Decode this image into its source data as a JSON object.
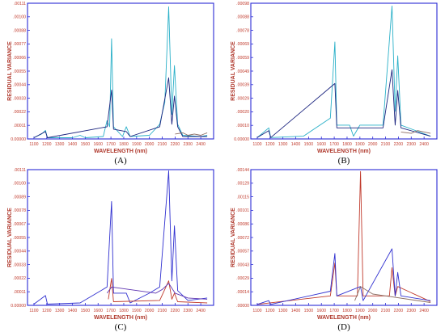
{
  "figure": {
    "panels": [
      {
        "letter": "(A)",
        "ylabel": "RESIDUAL VARIANCE",
        "xlabel": "WAVELENGTH (nm)",
        "yticks": [
          "0.00000",
          ".00011",
          ".00022",
          ".00033",
          ".00044",
          ".00055",
          ".00066",
          ".00077",
          ".00088",
          ".00100",
          ".00111"
        ],
        "xticks": [
          "1100",
          "1200",
          "1300",
          "1400",
          "1500",
          "1600",
          "1700",
          "1800",
          "1900",
          "2000",
          "2100",
          "2200",
          "2300",
          "2400"
        ]
      },
      {
        "letter": "(B)",
        "ylabel": "RESIDUAL VARIANCE",
        "xlabel": "WAVELENGTH (nm)",
        "yticks": [
          "0.00000",
          ".00010",
          ".00020",
          ".00029",
          ".00039",
          ".00049",
          ".00059",
          ".00069",
          ".00078",
          ".00088",
          ".00098"
        ],
        "xticks": [
          "1100",
          "1200",
          "1300",
          "1400",
          "1500",
          "1600",
          "1700",
          "1800",
          "1900",
          "2000",
          "2100",
          "2200",
          "2300",
          "2400"
        ]
      },
      {
        "letter": "(C)",
        "ylabel": "RESIDUAL VARIANCE",
        "xlabel": "WAVELENGTH (nm)",
        "yticks": [
          "0.00000",
          ".00011",
          ".00022",
          ".00033",
          ".00044",
          ".00055",
          ".00067",
          ".00078",
          ".00089",
          ".00100",
          ".00111"
        ],
        "xticks": [
          "1100",
          "1200",
          "1300",
          "1400",
          "1500",
          "1600",
          "1700",
          "1800",
          "1900",
          "2000",
          "2100",
          "2200",
          "2300",
          "2400"
        ]
      },
      {
        "letter": "(D)",
        "ylabel": "RESIDUAL VARIANCE",
        "xlabel": "WAVELENGTH (nm)",
        "yticks": [
          ".00000",
          ".00014",
          ".00029",
          ".00043",
          ".00057",
          ".00072",
          ".00086",
          ".00101",
          ".00115",
          ".00129",
          ".00144"
        ],
        "xticks": [
          "1100",
          "1200",
          "1300",
          "1400",
          "1500",
          "1600",
          "1700",
          "1800",
          "1900",
          "2000",
          "2100",
          "2200",
          "2300",
          "2400"
        ]
      }
    ]
  },
  "chart_data": [
    {
      "type": "line",
      "ylabel": "RESIDUAL VARIANCE",
      "xlabel": "WAVELENGTH (nm)",
      "xlim": [
        1050,
        2500
      ],
      "ylim": [
        0,
        0.00111
      ],
      "grid": false,
      "series": [
        {
          "color": "#2ab0c8",
          "points": [
            [
              1100,
              1e-05
            ],
            [
              1160,
              4e-05
            ],
            [
              1190,
              7e-05
            ],
            [
              1205,
              1e-05
            ],
            [
              1400,
              1e-05
            ],
            [
              1460,
              3e-05
            ],
            [
              1500,
              1e-05
            ],
            [
              1640,
              2e-05
            ],
            [
              1670,
              0.00015
            ],
            [
              1690,
              0.0001
            ],
            [
              1705,
              0.00082
            ],
            [
              1720,
              0.0001
            ],
            [
              1790,
              2e-05
            ],
            [
              1820,
              0.0001
            ],
            [
              1850,
              2e-05
            ],
            [
              2000,
              3e-05
            ],
            [
              2080,
              0.00012
            ],
            [
              2120,
              0.0003
            ],
            [
              2150,
              0.00108
            ],
            [
              2175,
              0.0002
            ],
            [
              2195,
              0.0006
            ],
            [
              2220,
              0.00012
            ],
            [
              2260,
              3e-05
            ],
            [
              2400,
              2e-05
            ],
            [
              2450,
              3e-05
            ]
          ]
        },
        {
          "color": "#1a237e",
          "points": [
            [
              1100,
              1e-05
            ],
            [
              1190,
              6e-05
            ],
            [
              1205,
              1e-05
            ],
            [
              1670,
              0.0001
            ],
            [
              1705,
              0.0004
            ],
            [
              1720,
              8e-05
            ],
            [
              1820,
              6e-05
            ],
            [
              1850,
              2e-05
            ],
            [
              2080,
              0.0001
            ],
            [
              2150,
              0.0005
            ],
            [
              2175,
              0.00012
            ],
            [
              2195,
              0.00035
            ],
            [
              2220,
              0.0001
            ],
            [
              2260,
              2e-05
            ],
            [
              2450,
              2e-05
            ]
          ]
        },
        {
          "color": "#8d6e63",
          "points": [
            [
              2200,
              4e-05
            ],
            [
              2260,
              5e-05
            ],
            [
              2300,
              3e-05
            ],
            [
              2350,
              4e-05
            ],
            [
              2400,
              3e-05
            ],
            [
              2450,
              5e-05
            ]
          ]
        }
      ]
    },
    {
      "type": "line",
      "ylabel": "RESIDUAL VARIANCE",
      "xlabel": "WAVELENGTH (nm)",
      "xlim": [
        1050,
        2500
      ],
      "ylim": [
        0,
        0.00098
      ],
      "grid": false,
      "series": [
        {
          "color": "#2ab0c8",
          "points": [
            [
              1100,
              1e-05
            ],
            [
              1190,
              8e-05
            ],
            [
              1205,
              1e-05
            ],
            [
              1460,
              2e-05
            ],
            [
              1670,
              0.00015
            ],
            [
              1705,
              0.0007
            ],
            [
              1720,
              0.0001
            ],
            [
              1820,
              0.0001
            ],
            [
              1850,
              2e-05
            ],
            [
              1900,
              0.0001
            ],
            [
              2080,
              0.0001
            ],
            [
              2150,
              0.00096
            ],
            [
              2175,
              0.0002
            ],
            [
              2195,
              0.0006
            ],
            [
              2220,
              0.0001
            ],
            [
              2450,
              2e-05
            ]
          ]
        },
        {
          "color": "#1a237e",
          "points": [
            [
              1100,
              1e-05
            ],
            [
              1190,
              6e-05
            ],
            [
              1205,
              1e-05
            ],
            [
              1705,
              0.0004
            ],
            [
              1720,
              8e-05
            ],
            [
              1900,
              8e-05
            ],
            [
              2080,
              8e-05
            ],
            [
              2150,
              0.0005
            ],
            [
              2175,
              0.0001
            ],
            [
              2195,
              0.00035
            ],
            [
              2220,
              8e-05
            ],
            [
              2450,
              2e-05
            ]
          ]
        },
        {
          "color": "#8d6e63",
          "points": [
            [
              2220,
              5e-05
            ],
            [
              2300,
              4e-05
            ],
            [
              2350,
              6e-05
            ],
            [
              2450,
              4e-05
            ]
          ]
        }
      ]
    },
    {
      "type": "line",
      "ylabel": "RESIDUAL VARIANCE",
      "xlabel": "WAVELENGTH (nm)",
      "xlim": [
        1050,
        2500
      ],
      "ylim": [
        0,
        0.00111
      ],
      "grid": false,
      "series": [
        {
          "color": "#3030d0",
          "points": [
            [
              1100,
              1e-05
            ],
            [
              1190,
              8e-05
            ],
            [
              1205,
              1e-05
            ],
            [
              1460,
              2e-05
            ],
            [
              1670,
              0.00015
            ],
            [
              1705,
              0.00085
            ],
            [
              1720,
              0.0001
            ],
            [
              1820,
              0.0001
            ],
            [
              1850,
              2e-05
            ],
            [
              2000,
              0.0001
            ],
            [
              2080,
              0.00015
            ],
            [
              2150,
              0.0011
            ],
            [
              2175,
              0.0002
            ],
            [
              2195,
              0.00065
            ],
            [
              2220,
              0.00012
            ],
            [
              2300,
              4e-05
            ],
            [
              2450,
              6e-05
            ]
          ]
        },
        {
          "color": "#c0392b",
          "points": [
            [
              1680,
              5e-05
            ],
            [
              1705,
              0.00022
            ],
            [
              1720,
              3e-05
            ],
            [
              2080,
              4e-05
            ],
            [
              2150,
              0.0002
            ],
            [
              2175,
              5e-05
            ],
            [
              2195,
              0.0001
            ],
            [
              2220,
              3e-05
            ],
            [
              2450,
              2e-05
            ]
          ]
        },
        {
          "color": "#5e35b1",
          "points": [
            [
              1670,
              0.0001
            ],
            [
              1705,
              0.00015
            ],
            [
              2050,
              0.0001
            ],
            [
              2100,
              0.00013
            ],
            [
              2150,
              0.00018
            ],
            [
              2200,
              0.0001
            ],
            [
              2300,
              6e-05
            ],
            [
              2450,
              5e-05
            ]
          ]
        }
      ]
    },
    {
      "type": "line",
      "ylabel": "RESIDUAL VARIANCE",
      "xlabel": "WAVELENGTH (nm)",
      "xlim": [
        1050,
        2500
      ],
      "ylim": [
        0,
        0.00144
      ],
      "grid": false,
      "series": [
        {
          "color": "#c0392b",
          "points": [
            [
              1100,
              1e-05
            ],
            [
              1670,
              0.0001
            ],
            [
              1705,
              0.00045
            ],
            [
              1720,
              0.0001
            ],
            [
              1880,
              0.0001
            ],
            [
              1905,
              0.00142
            ],
            [
              1925,
              0.0001
            ],
            [
              2130,
              0.0001
            ],
            [
              2150,
              0.0004
            ],
            [
              2175,
              0.0001
            ],
            [
              2195,
              0.0002
            ],
            [
              2450,
              4e-05
            ]
          ]
        },
        {
          "color": "#3030d0",
          "points": [
            [
              1100,
              1e-05
            ],
            [
              1190,
              5e-05
            ],
            [
              1205,
              1e-05
            ],
            [
              1670,
              0.00015
            ],
            [
              1705,
              0.00055
            ],
            [
              1720,
              0.0001
            ],
            [
              1905,
              0.0002
            ],
            [
              1925,
              5e-05
            ],
            [
              2150,
              0.0006
            ],
            [
              2175,
              0.0001
            ],
            [
              2195,
              0.00035
            ],
            [
              2220,
              0.0001
            ],
            [
              2450,
              5e-05
            ]
          ]
        },
        {
          "color": "#8d6e63",
          "points": [
            [
              1860,
              5e-05
            ],
            [
              1905,
              0.0002
            ],
            [
              2000,
              0.00012
            ],
            [
              2100,
              0.0001
            ],
            [
              2300,
              6e-05
            ],
            [
              2450,
              3e-05
            ]
          ]
        }
      ]
    }
  ]
}
